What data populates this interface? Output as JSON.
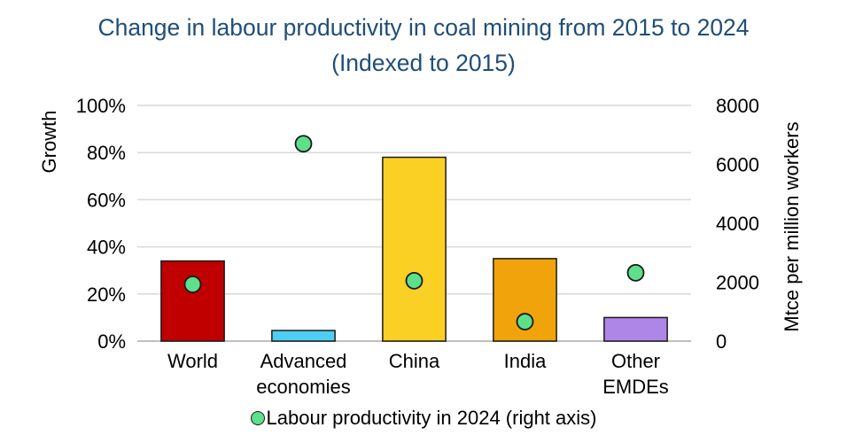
{
  "chart_data": {
    "type": "bar",
    "title": "Change in labour productivity in coal mining from 2015 to 2024",
    "subtitle": "(Indexed to 2015)",
    "categories": [
      [
        "World"
      ],
      [
        "Advanced",
        "economies"
      ],
      [
        "China"
      ],
      [
        "India"
      ],
      [
        "Other",
        "EMDEs"
      ]
    ],
    "category_names": [
      "World",
      "Advanced economies",
      "China",
      "India",
      "Other EMDEs"
    ],
    "series": [
      {
        "name": "Growth 2015-2024",
        "type": "bar",
        "axis": "left",
        "values": [
          34,
          4.5,
          78,
          35,
          10
        ],
        "colors": [
          "#c00000",
          "#4dcff5",
          "#fbd024",
          "#f0a30a",
          "#ae86e8"
        ]
      },
      {
        "name": "Labour productivity in 2024 (right axis)",
        "type": "scatter",
        "axis": "right",
        "values": [
          1925,
          6700,
          2050,
          660,
          2320
        ],
        "color": "#5de08a"
      }
    ],
    "ylabel": "Growth",
    "y2label": "Mtce per million workers",
    "ylim": [
      0,
      100
    ],
    "y2lim": [
      0,
      8000
    ],
    "yticks": [
      "0%",
      "20%",
      "40%",
      "60%",
      "80%",
      "100%"
    ],
    "y2ticks": [
      "0",
      "2000",
      "4000",
      "6000",
      "8000"
    ],
    "grid": true,
    "legend": {
      "label": "Labour productivity in 2024 (right axis)",
      "placement": "bottom"
    }
  }
}
